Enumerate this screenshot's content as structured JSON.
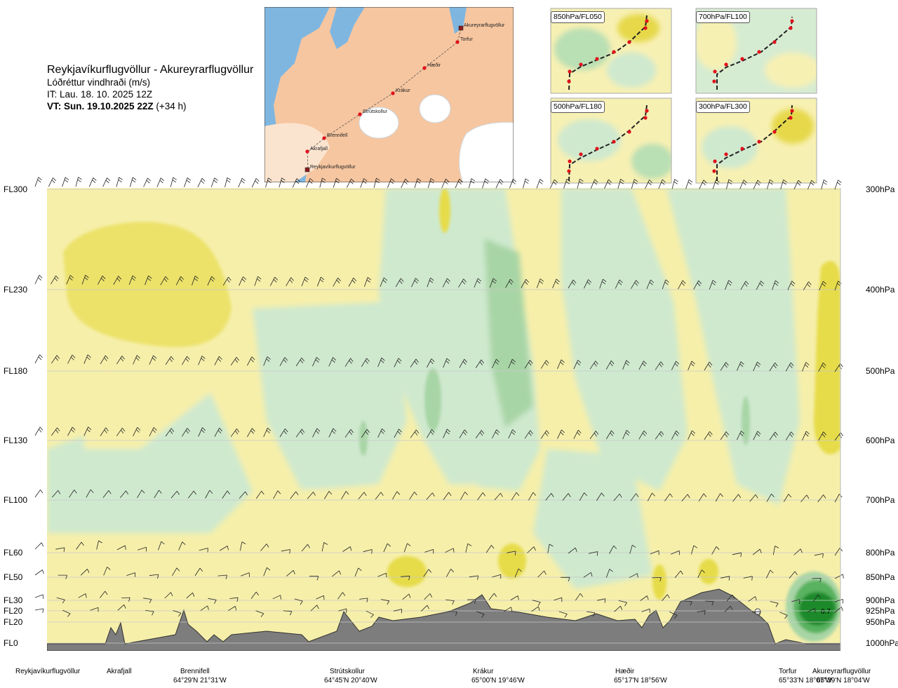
{
  "title": {
    "route": "Reykjavíkurflugvöllur - Akureyrarflugvöllur",
    "product": "Lóðréttur vindhraði (m/s)",
    "it": "IT: Lau. 18. 10. 2025 12Z",
    "vt_bold": "VT: Sun. 19.10.2025 22Z",
    "vt_lead": "(+34 h)"
  },
  "map": {
    "stations": [
      {
        "name": "Akureyrarflugvöllur",
        "type": "airport"
      },
      {
        "name": "Torfur",
        "type": "point"
      },
      {
        "name": "Hæðir",
        "type": "point"
      },
      {
        "name": "Krákur",
        "type": "point"
      },
      {
        "name": "Strútskollur",
        "type": "point"
      },
      {
        "name": "Brennifell",
        "type": "point"
      },
      {
        "name": "Akrafjall",
        "type": "point"
      },
      {
        "name": "Reykjavíkurflugvöllur",
        "type": "airport"
      }
    ]
  },
  "panels": [
    {
      "label": "850hPa/FL050"
    },
    {
      "label": "700hPa/FL100"
    },
    {
      "label": "500hPa/FL180"
    },
    {
      "label": "300hPa/FL300"
    }
  ],
  "chart_data": {
    "type": "heatmap",
    "title": "Lóðréttur vindhraði (m/s)",
    "flight_levels": [
      {
        "label": "FL300",
        "pressure": "300hPa",
        "hpa": 300
      },
      {
        "label": "FL230",
        "pressure": "400hPa",
        "hpa": 400
      },
      {
        "label": "FL180",
        "pressure": "500hPa",
        "hpa": 500
      },
      {
        "label": "FL130",
        "pressure": "600hPa",
        "hpa": 600
      },
      {
        "label": "FL100",
        "pressure": "700hPa",
        "hpa": 700
      },
      {
        "label": "FL60",
        "pressure": "800hPa",
        "hpa": 800
      },
      {
        "label": "FL50",
        "pressure": "850hPa",
        "hpa": 850
      },
      {
        "label": "FL30",
        "pressure": "900hPa",
        "hpa": 900
      },
      {
        "label": "FL20",
        "pressure": "925hPa",
        "hpa": 925
      },
      {
        "label": "FL20",
        "pressure": "950hPa",
        "hpa": 950
      },
      {
        "label": "FL0",
        "pressure": "1000hPa",
        "hpa": 1000
      }
    ],
    "route_points": [
      {
        "name": "Reykjavíkurflugvöllur",
        "coord": "",
        "dist": 0
      },
      {
        "name": "Akrafjall",
        "coord": "",
        "dist": 0.09
      },
      {
        "name": "Brennifell",
        "coord": "64°29'N 21°31'W",
        "dist": 0.185
      },
      {
        "name": "Strútskollur",
        "coord": "64°45'N 20°40'W",
        "dist": 0.378
      },
      {
        "name": "Krákur",
        "coord": "65°00'N 19°46'W",
        "dist": 0.56
      },
      {
        "name": "Hæðir",
        "coord": "65°17'N 18°56'W",
        "dist": 0.742
      },
      {
        "name": "Torfur",
        "coord": "65°33'N 18°07'W",
        "dist": 0.94
      },
      {
        "name": "Akureyrarflugvöllur",
        "coord": "65°39'N 18°04'W",
        "dist": 0.99
      }
    ],
    "contour_annotation": "0.7",
    "legend_colors": {
      "strong_up": "#1e8a2a",
      "mod_up": "#58b25e",
      "weak_up": "#a8d5a6",
      "slight_up": "#cfe9cf",
      "neutral": "#fbfbe3",
      "slight_down": "#f6f0a6",
      "weak_down": "#f1e67a",
      "mod_down": "#e4d72f",
      "terrain": "#7d7d7d"
    }
  }
}
